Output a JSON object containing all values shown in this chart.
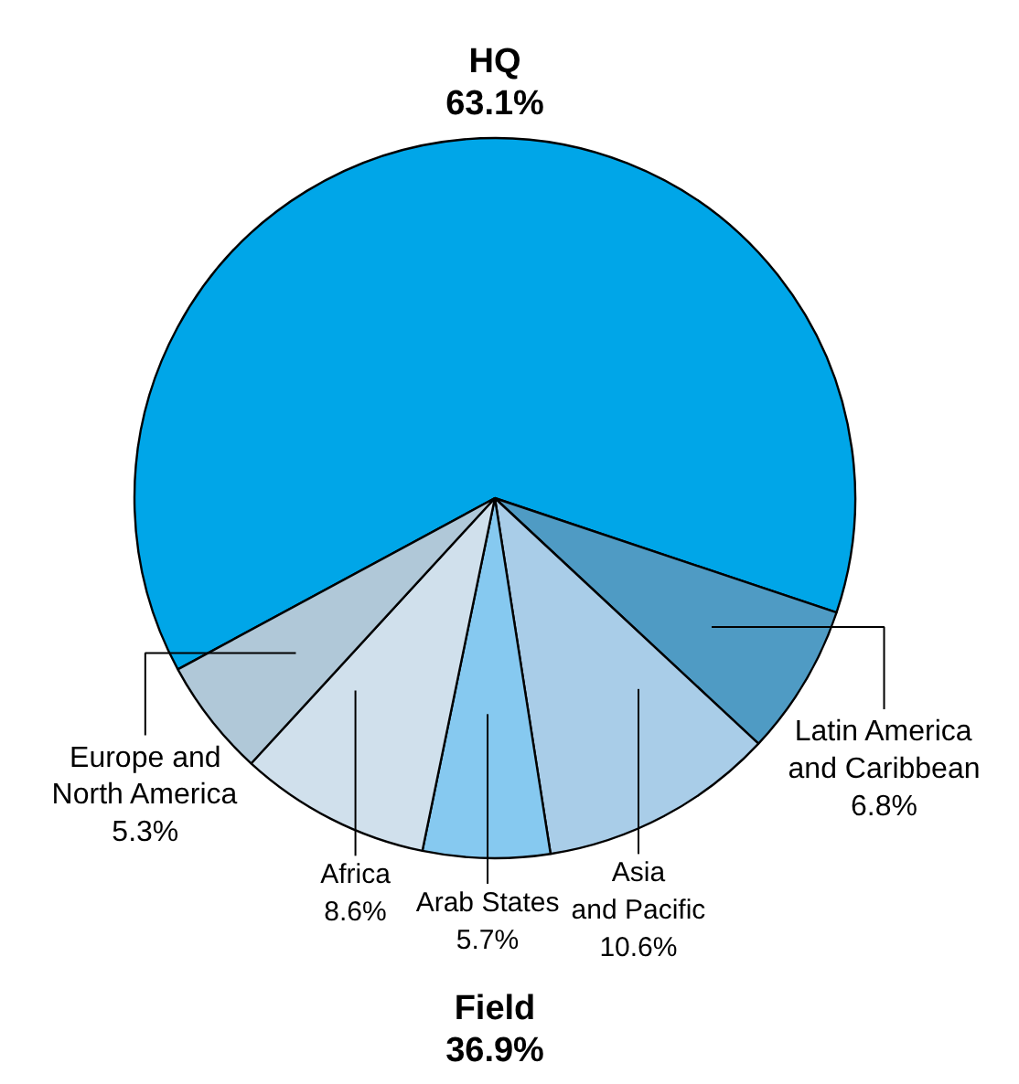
{
  "chart_data": {
    "type": "pie",
    "categories": [
      "HQ",
      "Latin America\nand Caribbean",
      "Asia\nand Pacific",
      "Arab States",
      "Africa",
      "Europe and\nNorth America"
    ],
    "values": [
      63.1,
      6.8,
      10.6,
      5.7,
      8.6,
      5.3
    ],
    "value_labels": [
      "63.1%",
      "6.8%",
      "10.6%",
      "5.7%",
      "8.6%",
      "5.3%"
    ],
    "colors": [
      "#00a6e8",
      "#4f9bc4",
      "#a9cde8",
      "#86c9f0",
      "#d0e0ec",
      "#b0c8d8"
    ],
    "annotations": [
      "Field\n36.9%"
    ]
  }
}
